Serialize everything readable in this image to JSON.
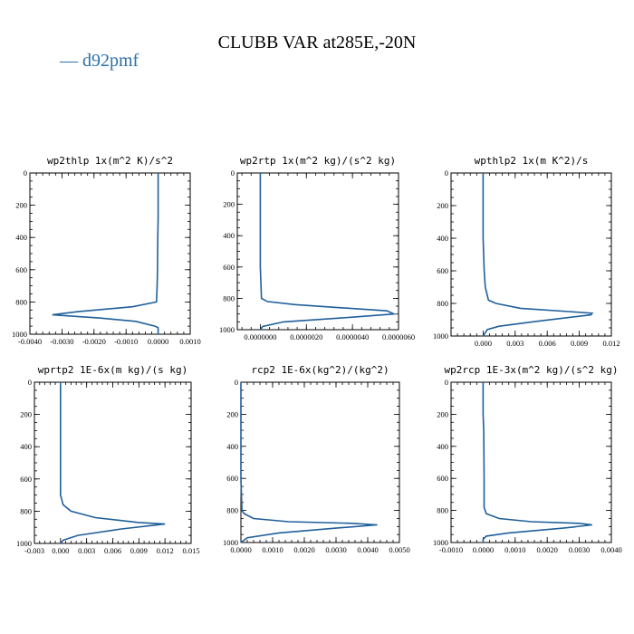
{
  "title": "CLUBB VAR at285E,-20N",
  "legend": [
    {
      "label": "— d92pmf",
      "color": "#2a6fa8"
    }
  ],
  "line_color": "#1f5f9a",
  "chart_data": [
    {
      "type": "line",
      "title": "wp2thlp   1x(m^2 K)/s^2",
      "xlim": [
        -0.004,
        0.001
      ],
      "ylim": [
        1000,
        0
      ],
      "xticks": [
        -0.004,
        -0.003,
        -0.002,
        -0.001,
        0.0,
        0.001
      ],
      "xtick_labels": [
        "-0.0040",
        "-0.0030",
        "-0.0020",
        "-0.0010",
        "0.0000",
        "0.0010"
      ],
      "yticks": [
        0,
        200,
        400,
        600,
        800,
        1000
      ],
      "ytick_labels": [
        "0",
        "200",
        "400",
        "600",
        "800",
        "1000"
      ],
      "series": [
        {
          "values": [
            0,
            0,
            0,
            -1e-05,
            -2e-05,
            -3e-05,
            -5e-05,
            -0.0008,
            -0.0025,
            -0.0033,
            -0.0018,
            -0.0007,
            -0.0001,
            0,
            0,
            0
          ],
          "levels": [
            0,
            200,
            280,
            400,
            600,
            700,
            800,
            830,
            860,
            880,
            900,
            920,
            950,
            960,
            980,
            1000
          ]
        }
      ]
    },
    {
      "type": "line",
      "title": "wp2rtp   1x(m^2 kg)/(s^2 kg)",
      "xlim": [
        -1e-06,
        6e-06
      ],
      "ylim": [
        1000,
        0
      ],
      "xticks": [
        0,
        2e-06,
        4e-06,
        6e-06
      ],
      "xtick_labels": [
        "0.0000000",
        "0.0000020",
        "0.0000040",
        "0.0000060"
      ],
      "yticks": [
        0,
        200,
        400,
        600,
        800,
        1000
      ],
      "ytick_labels": [
        "0",
        "200",
        "400",
        "600",
        "800",
        "1000"
      ],
      "series": [
        {
          "values": [
            0,
            0,
            0,
            0,
            5e-08,
            3e-07,
            1.5e-06,
            3.5e-06,
            5.5e-06,
            5.8e-06,
            4e-06,
            1e-06,
            1e-07,
            0
          ],
          "levels": [
            0,
            200,
            400,
            600,
            800,
            820,
            840,
            860,
            880,
            900,
            920,
            950,
            980,
            1000
          ]
        }
      ]
    },
    {
      "type": "line",
      "title": "wpthlp2   1x(m K^2)/s",
      "xlim": [
        -0.003,
        0.012
      ],
      "ylim": [
        1000,
        0
      ],
      "xticks": [
        0,
        0.003,
        0.006,
        0.009,
        0.012
      ],
      "xtick_labels": [
        "0.000",
        "0.003",
        "0.006",
        "0.009",
        "0.012"
      ],
      "yticks": [
        0,
        200,
        400,
        600,
        800,
        1000
      ],
      "ytick_labels": [
        "0",
        "200",
        "400",
        "600",
        "800",
        "1000"
      ],
      "series": [
        {
          "values": [
            0,
            0,
            0,
            0.0001,
            0.0002,
            0.0005,
            0.0012,
            0.0035,
            0.008,
            0.0102,
            0.0101,
            0.005,
            0.0015,
            0.0004,
            0
          ],
          "levels": [
            0,
            200,
            400,
            600,
            700,
            780,
            800,
            830,
            850,
            860,
            870,
            910,
            940,
            960,
            1000
          ]
        }
      ]
    },
    {
      "type": "line",
      "title": "wprtp2   1E-6x(m kg)/(s kg)",
      "xlim": [
        -0.003,
        0.015
      ],
      "ylim": [
        1000,
        0
      ],
      "xticks": [
        -0.003,
        0,
        0.003,
        0.006,
        0.009,
        0.012,
        0.015
      ],
      "xtick_labels": [
        "-0.003",
        "0.000",
        "0.003",
        "0.006",
        "0.009",
        "0.012",
        "0.015"
      ],
      "yticks": [
        0,
        200,
        400,
        600,
        800,
        1000
      ],
      "ytick_labels": [
        "0",
        "200",
        "400",
        "600",
        "800",
        "1000"
      ],
      "series": [
        {
          "values": [
            0,
            0,
            0,
            0,
            0.0003,
            0.0012,
            0.004,
            0.009,
            0.012,
            0.007,
            0.002,
            0.0003,
            0
          ],
          "levels": [
            0,
            200,
            400,
            700,
            760,
            800,
            840,
            870,
            880,
            910,
            950,
            980,
            1000
          ]
        }
      ]
    },
    {
      "type": "line",
      "title": "rcp2   1E-6x(kg^2)/(kg^2)",
      "xlim": [
        0,
        0.005
      ],
      "ylim": [
        1000,
        0
      ],
      "xticks": [
        0,
        0.001,
        0.002,
        0.003,
        0.004,
        0.005
      ],
      "xtick_labels": [
        "0.0000",
        "0.0010",
        "0.0020",
        "0.0030",
        "0.0040",
        "0.0050"
      ],
      "yticks": [
        0,
        200,
        400,
        600,
        800,
        1000
      ],
      "ytick_labels": [
        "0",
        "200",
        "400",
        "600",
        "800",
        "1000"
      ],
      "series": [
        {
          "values": [
            0,
            0,
            0,
            3e-05,
            0.0001,
            0.0004,
            0.0015,
            0.0035,
            0.0043,
            0.003,
            0.0012,
            0.0002,
            0
          ],
          "levels": [
            0,
            200,
            600,
            800,
            820,
            850,
            870,
            880,
            890,
            910,
            940,
            970,
            1000
          ]
        }
      ]
    },
    {
      "type": "line",
      "title": "wp2rcp   1E-3x(m^2 kg)/(s^2 kg)",
      "xlim": [
        -0.001,
        0.004
      ],
      "ylim": [
        1000,
        0
      ],
      "xticks": [
        -0.001,
        0,
        0.001,
        0.002,
        0.003,
        0.004
      ],
      "xtick_labels": [
        "-0.0010",
        "0.0000",
        "0.0010",
        "0.0020",
        "0.0030",
        "0.0040"
      ],
      "yticks": [
        0,
        200,
        400,
        600,
        800,
        1000
      ],
      "ytick_labels": [
        "0",
        "200",
        "400",
        "600",
        "800",
        "1000"
      ],
      "series": [
        {
          "values": [
            0,
            0,
            2e-05,
            3e-05,
            3e-05,
            0.0001,
            0.0005,
            0.0015,
            0.003,
            0.0034,
            0.0025,
            0.0008,
            0.0001,
            0,
            0
          ],
          "levels": [
            0,
            200,
            300,
            600,
            780,
            820,
            850,
            870,
            880,
            890,
            910,
            940,
            960,
            980,
            1000
          ]
        }
      ]
    }
  ]
}
